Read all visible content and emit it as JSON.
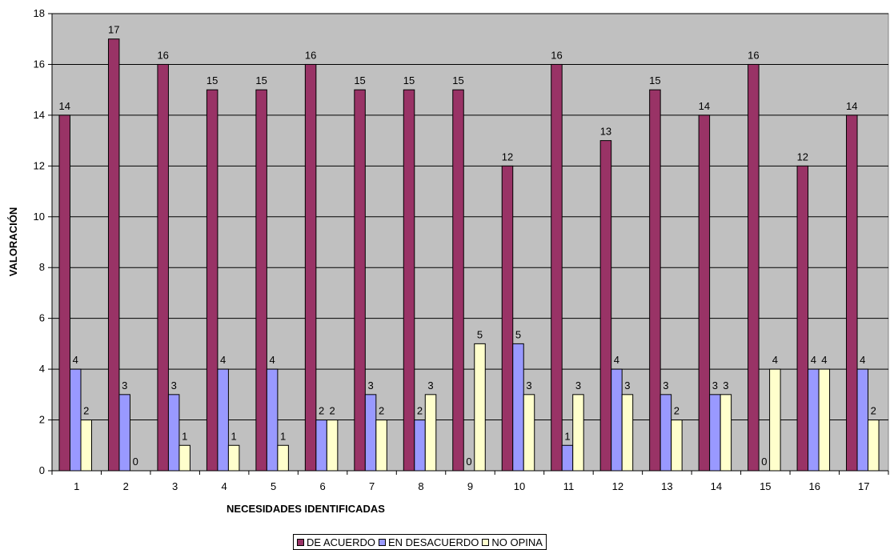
{
  "chart_data": {
    "type": "bar",
    "xlabel": "NECESIDADES IDENTIFICADAS",
    "ylabel": "VALORACIÓN",
    "ylim": [
      0,
      18
    ],
    "yticks": [
      0,
      2,
      4,
      6,
      8,
      10,
      12,
      14,
      16,
      18
    ],
    "grid": true,
    "legend_position": "bottom",
    "categories": [
      "1",
      "2",
      "3",
      "4",
      "5",
      "6",
      "7",
      "8",
      "9",
      "10",
      "11",
      "12",
      "13",
      "14",
      "15",
      "16",
      "17"
    ],
    "series": [
      {
        "name": "DE ACUERDO",
        "color": "#993366",
        "values": [
          14,
          17,
          16,
          15,
          15,
          16,
          15,
          15,
          15,
          12,
          16,
          13,
          15,
          14,
          16,
          12,
          14
        ]
      },
      {
        "name": "EN DESACUERDO",
        "color": "#9999FF",
        "values": [
          4,
          3,
          3,
          4,
          4,
          2,
          3,
          2,
          0,
          5,
          1,
          4,
          3,
          3,
          0,
          4,
          4
        ]
      },
      {
        "name": "NO OPINA",
        "color": "#FFFFCC",
        "values": [
          2,
          0,
          1,
          1,
          1,
          2,
          2,
          3,
          5,
          3,
          3,
          3,
          2,
          3,
          4,
          4,
          2
        ]
      }
    ],
    "plot_background": "#C0C0C0"
  }
}
